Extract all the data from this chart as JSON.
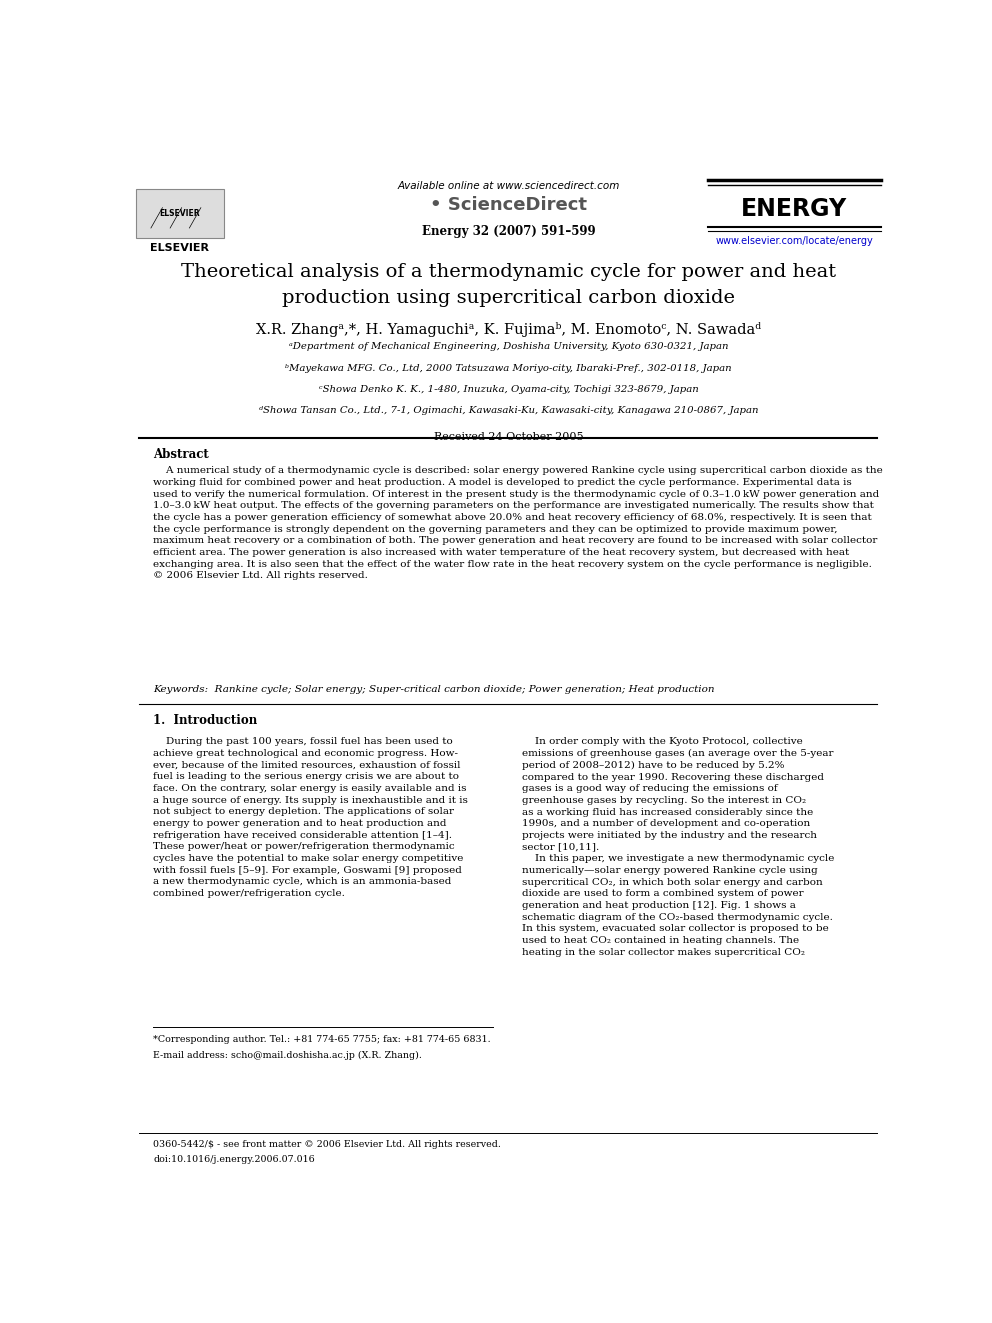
{
  "page_title": "Theoretical analysis of a thermodynamic cycle for power and heat\nproduction using supercritical carbon dioxide",
  "journal_info": "Energy 32 (2007) 591–599",
  "available_online": "Available online at www.sciencedirect.com",
  "sciencedirect": "ScienceDirect",
  "energy_label": "ENERGY",
  "elsevier_label": "ELSEVIER",
  "url": "www.elsevier.com/locate/energy",
  "affil_a": "ᵃDepartment of Mechanical Engineering, Doshisha University, Kyoto 630-0321, Japan",
  "affil_b": "ᵇMayekawa MFG. Co., Ltd, 2000 Tatsuzawa Moriyo-city, Ibaraki-Pref., 302-0118, Japan",
  "affil_c": "ᶜShowa Denko K. K., 1-480, Inuzuka, Oyama-city, Tochigi 323-8679, Japan",
  "affil_d": "ᵈShowa Tansan Co., Ltd., 7-1, Ogimachi, Kawasaki-Ku, Kawasaki-city, Kanagawa 210-0867, Japan",
  "received": "Received 24 October 2005",
  "abstract_title": "Abstract",
  "keywords": "Keywords:  Rankine cycle; Solar energy; Super-critical carbon dioxide; Power generation; Heat production",
  "section1_title": "1.  Introduction",
  "footnote_corresponding": "*Corresponding author. Tel.: +81 774-65 7755; fax: +81 774-65 6831.",
  "footnote_email": "E-mail address: scho@mail.doshisha.ac.jp (X.R. Zhang).",
  "footer_left": "0360-5442/$ - see front matter © 2006 Elsevier Ltd. All rights reserved.",
  "footer_doi": "doi:10.1016/j.energy.2006.07.016",
  "bg_color": "#ffffff",
  "text_color": "#000000",
  "link_color": "#0000cc"
}
